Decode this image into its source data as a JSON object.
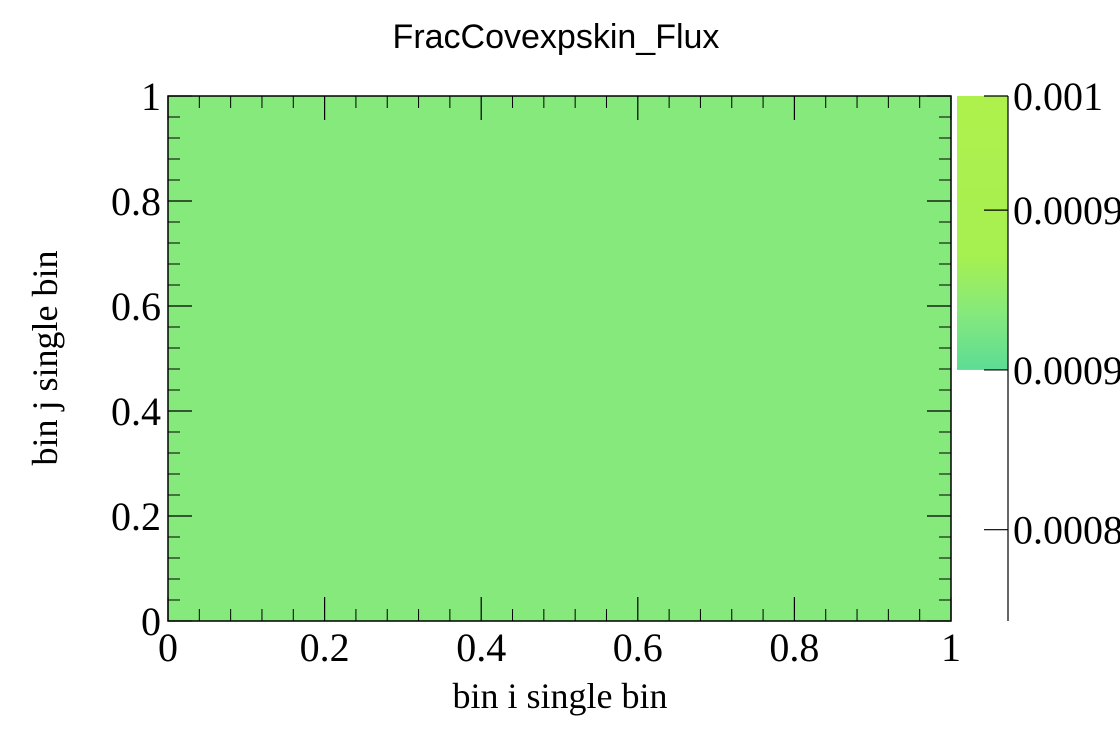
{
  "chart_data": {
    "type": "heatmap",
    "title": "FracCovexpskin_Flux",
    "xlabel": "bin i single bin",
    "ylabel": "bin j single bin",
    "xlim": [
      0,
      1
    ],
    "ylim": [
      0,
      1
    ],
    "x_ticks": [
      "0",
      "0.2",
      "0.4",
      "0.6",
      "0.8",
      "1"
    ],
    "y_ticks": [
      "0",
      "0.2",
      "0.4",
      "0.6",
      "0.8",
      "1"
    ],
    "cells": [
      {
        "x_range": [
          0,
          1
        ],
        "y_range": [
          0,
          1
        ],
        "value": 0.00088,
        "color": "#86e97c"
      }
    ],
    "colorbar": {
      "tick_labels": [
        "0.0008",
        "0.0009",
        "0.0009",
        "0.001"
      ],
      "tick_values": [
        0.00081,
        0.00088,
        0.00095,
        0.001
      ],
      "range": [
        0.00077,
        0.001
      ],
      "filled_range": [
        0.00088,
        0.001
      ],
      "gradient_stops": [
        {
          "value": 0.00088,
          "color": "#5ddc96"
        },
        {
          "value": 0.000905,
          "color": "#86e97c"
        },
        {
          "value": 0.00093,
          "color": "#a6f050"
        },
        {
          "value": 0.001,
          "color": "#aef14c"
        }
      ]
    },
    "grid": false,
    "legend": "none"
  }
}
